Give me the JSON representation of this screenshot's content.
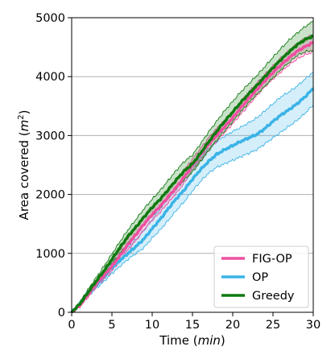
{
  "chart_data": {
    "type": "line",
    "xlabel": "Time (min)",
    "xlabel_parts": {
      "prefix": "Time (",
      "unit": "min",
      "suffix": ")"
    },
    "ylabel": "Area covered (m²)",
    "ylabel_parts": {
      "prefix": "Area covered (",
      "unit": "m",
      "sup": "2",
      "suffix": ")"
    },
    "xlim": [
      0,
      30
    ],
    "ylim": [
      0,
      5000
    ],
    "xticks": [
      0,
      5,
      10,
      15,
      20,
      25,
      30
    ],
    "yticks": [
      0,
      1000,
      2000,
      3000,
      4000,
      5000
    ],
    "grid": "horizontal",
    "legend_position": "bottom-right",
    "x": [
      0,
      1,
      2,
      3,
      4,
      5,
      6,
      7,
      8,
      9,
      10,
      11,
      12,
      13,
      14,
      15,
      16,
      17,
      18,
      19,
      20,
      21,
      22,
      23,
      24,
      25,
      26,
      27,
      28,
      29,
      30
    ],
    "series": [
      {
        "name": "FIG-OP",
        "color": "#ee4fa0",
        "values": [
          0,
          120,
          300,
          480,
          620,
          780,
          960,
          1150,
          1320,
          1500,
          1660,
          1800,
          1960,
          2120,
          2300,
          2500,
          2680,
          2850,
          3000,
          3150,
          3300,
          3470,
          3630,
          3780,
          3930,
          4070,
          4200,
          4320,
          4430,
          4510,
          4580
        ],
        "lower": [
          0,
          90,
          250,
          420,
          560,
          700,
          880,
          1060,
          1220,
          1400,
          1560,
          1700,
          1860,
          2020,
          2200,
          2420,
          2580,
          2750,
          2900,
          3050,
          3200,
          3360,
          3520,
          3680,
          3830,
          3960,
          4080,
          4200,
          4300,
          4370,
          4420
        ],
        "upper": [
          0,
          150,
          350,
          540,
          690,
          870,
          1060,
          1260,
          1430,
          1620,
          1780,
          1920,
          2080,
          2240,
          2420,
          2600,
          2780,
          2960,
          3120,
          3260,
          3400,
          3570,
          3740,
          3890,
          4040,
          4180,
          4320,
          4440,
          4560,
          4650,
          4720
        ]
      },
      {
        "name": "OP",
        "color": "#3ab3e6",
        "values": [
          0,
          140,
          320,
          460,
          600,
          760,
          880,
          1000,
          1120,
          1250,
          1420,
          1580,
          1760,
          1930,
          2080,
          2260,
          2420,
          2560,
          2680,
          2760,
          2830,
          2900,
          2960,
          3020,
          3120,
          3240,
          3350,
          3440,
          3540,
          3660,
          3800
        ],
        "lower": [
          0,
          110,
          270,
          400,
          520,
          660,
          780,
          900,
          1000,
          1100,
          1260,
          1400,
          1560,
          1730,
          1880,
          2060,
          2220,
          2360,
          2460,
          2520,
          2580,
          2640,
          2700,
          2760,
          2860,
          2960,
          3060,
          3160,
          3260,
          3380,
          3520
        ],
        "upper": [
          0,
          170,
          370,
          520,
          680,
          860,
          980,
          1100,
          1240,
          1400,
          1580,
          1760,
          1960,
          2140,
          2300,
          2460,
          2620,
          2780,
          2900,
          2990,
          3070,
          3140,
          3220,
          3300,
          3420,
          3540,
          3660,
          3740,
          3840,
          3960,
          4080
        ]
      },
      {
        "name": "Greedy",
        "color": "#0f7a0f",
        "values": [
          0,
          140,
          330,
          520,
          700,
          900,
          1100,
          1290,
          1450,
          1620,
          1780,
          1920,
          2080,
          2250,
          2400,
          2520,
          2700,
          2890,
          3070,
          3240,
          3400,
          3560,
          3710,
          3850,
          4000,
          4150,
          4290,
          4420,
          4540,
          4630,
          4690
        ],
        "lower": [
          0,
          110,
          280,
          460,
          630,
          820,
          1000,
          1180,
          1340,
          1500,
          1640,
          1780,
          1940,
          2100,
          2250,
          2380,
          2560,
          2740,
          2920,
          3080,
          3240,
          3400,
          3560,
          3700,
          3840,
          3980,
          4120,
          4240,
          4360,
          4420,
          4450
        ],
        "upper": [
          0,
          170,
          380,
          580,
          780,
          990,
          1200,
          1400,
          1580,
          1760,
          1920,
          2070,
          2240,
          2410,
          2560,
          2670,
          2860,
          3060,
          3240,
          3420,
          3580,
          3740,
          3880,
          4020,
          4170,
          4330,
          4480,
          4620,
          4740,
          4850,
          4940
        ]
      }
    ]
  }
}
